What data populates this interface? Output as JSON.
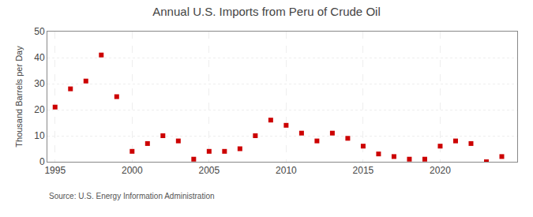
{
  "chart_data": {
    "type": "scatter",
    "title": "Annual U.S. Imports from Peru of Crude Oil",
    "y_label": "Thousand Barrels per Day",
    "annotations": [
      "Source: U.S. Energy Information Administration"
    ],
    "x": [
      1995,
      1996,
      1997,
      1998,
      1999,
      2000,
      2001,
      2002,
      2003,
      2004,
      2005,
      2006,
      2007,
      2008,
      2009,
      2010,
      2011,
      2012,
      2013,
      2014,
      2015,
      2016,
      2017,
      2018,
      2019,
      2020,
      2021,
      2022,
      2023,
      2024
    ],
    "values": [
      21,
      28,
      31,
      41,
      25,
      4,
      7,
      10,
      8,
      1,
      4,
      4,
      5,
      10,
      16,
      14,
      11,
      8,
      11,
      9,
      6,
      3,
      2,
      1,
      1,
      6,
      8,
      7,
      0,
      2
    ],
    "color": "#cc0000",
    "marker": "square",
    "xlim": [
      1994.5,
      2025
    ],
    "ylim": [
      0,
      50
    ],
    "xticks": [
      1995,
      2000,
      2005,
      2010,
      2015,
      2020
    ],
    "yticks": [
      0,
      10,
      20,
      30,
      40,
      50
    ],
    "grid": true
  }
}
